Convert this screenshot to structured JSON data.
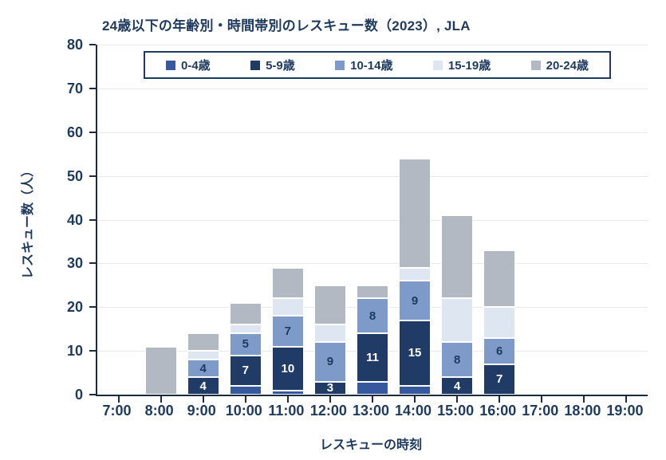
{
  "header": {
    "title": "24歳以下の年齢別・時間帯別のレスキュー数（2023）, JLA"
  },
  "colors": {
    "text": "#1e3a5f",
    "axis": "#1b2b45",
    "grid": "#e9e9e9",
    "background": "#ffffff"
  },
  "chart_data": {
    "type": "bar",
    "stacked": true,
    "title": "24歳以下の年齢別・時間帯別のレスキュー数（2023）, JLA",
    "xlabel": "レスキューの時刻",
    "ylabel": "レスキュー数（人）",
    "ylim": [
      0,
      80
    ],
    "ytick_step": 10,
    "grid": "horizontal",
    "legend_position": "top-inside-border-box",
    "categories": [
      "7:00",
      "8:00",
      "9:00",
      "10:00",
      "11:00",
      "12:00",
      "13:00",
      "14:00",
      "15:00",
      "16:00",
      "17:00",
      "18:00",
      "19:00"
    ],
    "series": [
      {
        "name": "0-4歳",
        "color": "#35599c",
        "label_color": "#ffffff",
        "show_labels": false,
        "values": [
          0,
          0,
          0,
          2,
          1,
          0,
          3,
          2,
          0,
          0,
          0,
          0,
          0
        ]
      },
      {
        "name": "5-9歳",
        "color": "#203c66",
        "label_color": "#ffffff",
        "show_labels": true,
        "values": [
          0,
          0,
          4,
          7,
          10,
          3,
          11,
          15,
          4,
          7,
          0,
          0,
          0
        ]
      },
      {
        "name": "10-14歳",
        "color": "#7e9ac9",
        "label_color": "#1e3a5f",
        "show_labels": true,
        "values": [
          0,
          0,
          4,
          5,
          7,
          9,
          8,
          9,
          8,
          6,
          0,
          0,
          0
        ]
      },
      {
        "name": "15-19歳",
        "color": "#dde6f1",
        "label_color": "#1e3a5f",
        "show_labels": false,
        "values": [
          0,
          0,
          2,
          2,
          4,
          4,
          0,
          3,
          10,
          7,
          0,
          0,
          0
        ]
      },
      {
        "name": "20-24歳",
        "color": "#b3b9c3",
        "label_color": "#1e3a5f",
        "show_labels": false,
        "values": [
          0,
          11,
          4,
          5,
          7,
          9,
          3,
          25,
          19,
          13,
          0,
          0,
          0
        ]
      }
    ],
    "bar_totals": [
      0,
      11,
      14,
      21,
      29,
      25,
      25,
      54,
      41,
      33,
      0,
      0,
      0
    ]
  }
}
